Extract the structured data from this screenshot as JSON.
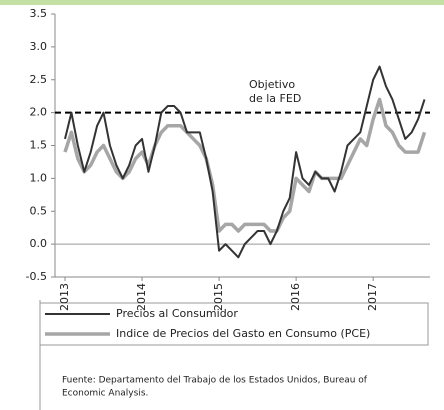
{
  "chart_data": {
    "type": "line",
    "categories": [
      "2013",
      null,
      null,
      null,
      null,
      null,
      null,
      null,
      null,
      null,
      null,
      null,
      "2014",
      null,
      null,
      null,
      null,
      null,
      null,
      null,
      null,
      null,
      null,
      null,
      "2015",
      null,
      null,
      null,
      null,
      null,
      null,
      null,
      null,
      null,
      null,
      null,
      "2016",
      null,
      null,
      null,
      null,
      null,
      null,
      null,
      null,
      null,
      null,
      null,
      "2017",
      null,
      null,
      null,
      null,
      null,
      null,
      null,
      null
    ],
    "series": [
      {
        "name": "Precios al Consumidor",
        "color": "#333333",
        "values": [
          1.6,
          2.0,
          1.5,
          1.1,
          1.4,
          1.8,
          2.0,
          1.5,
          1.2,
          1.0,
          1.2,
          1.5,
          1.6,
          1.1,
          1.5,
          2.0,
          2.1,
          2.1,
          2.0,
          1.7,
          1.7,
          1.7,
          1.3,
          0.8,
          -0.1,
          0.0,
          -0.1,
          -0.2,
          0.0,
          0.1,
          0.2,
          0.2,
          0.0,
          0.2,
          0.5,
          0.7,
          1.4,
          1.0,
          0.9,
          1.1,
          1.0,
          1.0,
          0.8,
          1.1,
          1.5,
          1.6,
          1.7,
          2.1,
          2.5,
          2.7,
          2.4,
          2.2,
          1.9,
          1.6,
          1.7,
          1.9,
          2.2
        ]
      },
      {
        "name": "Indice de Precios del Gasto en Consumo (PCE)",
        "color": "#a6a6a6",
        "values": [
          1.4,
          1.7,
          1.3,
          1.1,
          1.2,
          1.4,
          1.5,
          1.3,
          1.1,
          1.0,
          1.1,
          1.3,
          1.4,
          1.2,
          1.5,
          1.7,
          1.8,
          1.8,
          1.8,
          1.7,
          1.6,
          1.5,
          1.3,
          0.9,
          0.2,
          0.3,
          0.3,
          0.2,
          0.3,
          0.3,
          0.3,
          0.3,
          0.2,
          0.2,
          0.4,
          0.5,
          1.0,
          0.9,
          0.8,
          1.1,
          1.0,
          1.0,
          1.0,
          1.0,
          1.2,
          1.4,
          1.6,
          1.5,
          1.9,
          2.2,
          1.8,
          1.7,
          1.5,
          1.4,
          1.4,
          1.4,
          1.7
        ]
      }
    ],
    "ylim": [
      -0.5,
      3.5
    ],
    "yticks": [
      {
        "value": -0.5,
        "label": "-0.5"
      },
      {
        "value": 0,
        "label": "0.0"
      },
      {
        "value": 0.5,
        "label": "0.5"
      },
      {
        "value": 1,
        "label": "1.0"
      },
      {
        "value": 1.5,
        "label": "1.5"
      },
      {
        "value": 2,
        "label": "2.0"
      },
      {
        "value": 2.5,
        "label": "2.5"
      },
      {
        "value": 3,
        "label": "3.0"
      },
      {
        "value": 3.5,
        "label": "3.5"
      }
    ],
    "reference_line": {
      "value": 2,
      "label": [
        "Objetivo",
        "de la FED"
      ]
    },
    "legend": "bottom",
    "source": [
      "Fuente:  Departamento del Trabajo de los Estados Unidos, Bureau of",
      "Economic Analysis."
    ]
  }
}
